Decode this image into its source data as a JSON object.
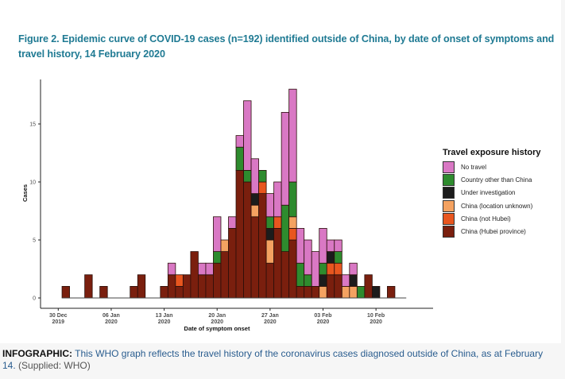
{
  "figure": {
    "title": "Figure 2. Epidemic curve of COVID-19 cases (n=192) identified outside of China, by date of onset of symptoms and travel history, 14 February 2020"
  },
  "caption": {
    "label": "INFOGRAPHIC:",
    "text": " This WHO graph reflects the travel history of the coronavirus cases diagnosed outside of China, as at February 14.",
    "source": " (Supplied: WHO)"
  },
  "chart_data": {
    "type": "bar",
    "stacked": true,
    "title": "Figure 2. Epidemic curve of COVID-19 cases (n=192) identified outside of China, by date of onset of symptoms and travel history, 14 February 2020",
    "xlabel": "Date of symptom onset",
    "ylabel": "Cases",
    "ylim": [
      0,
      18
    ],
    "y_ticks": [
      0,
      5,
      10,
      15
    ],
    "x_start_date": "30 Dec 2019",
    "x_ticks": [
      {
        "day": 0,
        "label1": "30 Dec",
        "label2": "2019"
      },
      {
        "day": 7,
        "label1": "06 Jan",
        "label2": "2020"
      },
      {
        "day": 14,
        "label1": "13 Jan",
        "label2": "2020"
      },
      {
        "day": 21,
        "label1": "20 Jan",
        "label2": "2020"
      },
      {
        "day": 28,
        "label1": "27 Jan",
        "label2": "2020"
      },
      {
        "day": 35,
        "label1": "03 Feb",
        "label2": "2020"
      },
      {
        "day": 42,
        "label1": "10 Feb",
        "label2": "2020"
      }
    ],
    "legend_title": "Travel exposure history",
    "legend_position": "right",
    "grid": false,
    "series": [
      {
        "key": "hubei",
        "name": "China (Hubei province)",
        "color": "#7a1f0e"
      },
      {
        "key": "not_hubei",
        "name": "China (not Hubei)",
        "color": "#e8561f"
      },
      {
        "key": "unknown",
        "name": "China (location unknown)",
        "color": "#f4a261"
      },
      {
        "key": "investigation",
        "name": "Under investigation",
        "color": "#1c1c1c"
      },
      {
        "key": "other",
        "name": "Country other than China",
        "color": "#2e8b2e"
      },
      {
        "key": "no_travel",
        "name": "No travel",
        "color": "#d978c4"
      }
    ],
    "legend_order": [
      "no_travel",
      "other",
      "investigation",
      "unknown",
      "not_hubei",
      "hubei"
    ],
    "bars": [
      {
        "date": "31 Dec",
        "day": 1,
        "hubei": 1
      },
      {
        "date": "03 Jan",
        "day": 4,
        "hubei": 2
      },
      {
        "date": "05 Jan",
        "day": 6,
        "hubei": 1
      },
      {
        "date": "09 Jan",
        "day": 10,
        "hubei": 1
      },
      {
        "date": "10 Jan",
        "day": 11,
        "hubei": 2
      },
      {
        "date": "13 Jan",
        "day": 14,
        "hubei": 1
      },
      {
        "date": "14 Jan",
        "day": 15,
        "hubei": 2,
        "no_travel": 1
      },
      {
        "date": "15 Jan",
        "day": 16,
        "hubei": 1,
        "not_hubei": 1
      },
      {
        "date": "16 Jan",
        "day": 17,
        "hubei": 2
      },
      {
        "date": "17 Jan",
        "day": 18,
        "hubei": 4
      },
      {
        "date": "18 Jan",
        "day": 19,
        "hubei": 2,
        "no_travel": 1
      },
      {
        "date": "19 Jan",
        "day": 20,
        "hubei": 2,
        "no_travel": 1
      },
      {
        "date": "20 Jan",
        "day": 21,
        "hubei": 3,
        "other": 1,
        "no_travel": 3
      },
      {
        "date": "21 Jan",
        "day": 22,
        "hubei": 4,
        "unknown": 1
      },
      {
        "date": "22 Jan",
        "day": 23,
        "hubei": 6,
        "no_travel": 1
      },
      {
        "date": "23 Jan",
        "day": 24,
        "hubei": 11,
        "other": 2,
        "no_travel": 1
      },
      {
        "date": "24 Jan",
        "day": 25,
        "hubei": 10,
        "other": 1,
        "no_travel": 6
      },
      {
        "date": "25 Jan",
        "day": 26,
        "hubei": 7,
        "unknown": 1,
        "investigation": 1,
        "no_travel": 3
      },
      {
        "date": "26 Jan",
        "day": 27,
        "hubei": 9,
        "not_hubei": 1,
        "other": 1
      },
      {
        "date": "27 Jan",
        "day": 28,
        "hubei": 3,
        "unknown": 2,
        "investigation": 1,
        "other": 1,
        "no_travel": 2
      },
      {
        "date": "28 Jan",
        "day": 29,
        "hubei": 6,
        "not_hubei": 1,
        "no_travel": 3
      },
      {
        "date": "29 Jan",
        "day": 30,
        "hubei": 4,
        "other": 4,
        "no_travel": 8
      },
      {
        "date": "30 Jan",
        "day": 31,
        "hubei": 5,
        "not_hubei": 1,
        "unknown": 1,
        "other": 3,
        "no_travel": 8
      },
      {
        "date": "31 Jan",
        "day": 32,
        "hubei": 1,
        "other": 2,
        "no_travel": 3
      },
      {
        "date": "01 Feb",
        "day": 33,
        "hubei": 1,
        "other": 1,
        "no_travel": 3
      },
      {
        "date": "02 Feb",
        "day": 34,
        "hubei": 1,
        "no_travel": 3
      },
      {
        "date": "03 Feb",
        "day": 35,
        "unknown": 1,
        "investigation": 1,
        "other": 1,
        "no_travel": 3
      },
      {
        "date": "04 Feb",
        "day": 36,
        "hubei": 2,
        "not_hubei": 1,
        "investigation": 1,
        "no_travel": 1
      },
      {
        "date": "05 Feb",
        "day": 37,
        "hubei": 2,
        "not_hubei": 1,
        "other": 1,
        "no_travel": 1
      },
      {
        "date": "06 Feb",
        "day": 38,
        "unknown": 1,
        "no_travel": 1
      },
      {
        "date": "07 Feb",
        "day": 39,
        "unknown": 1,
        "investigation": 1,
        "no_travel": 1
      },
      {
        "date": "08 Feb",
        "day": 40,
        "other": 1
      },
      {
        "date": "09 Feb",
        "day": 41,
        "hubei": 2
      },
      {
        "date": "10 Feb",
        "day": 42,
        "investigation": 1
      },
      {
        "date": "12 Feb",
        "day": 44,
        "hubei": 1
      }
    ]
  }
}
